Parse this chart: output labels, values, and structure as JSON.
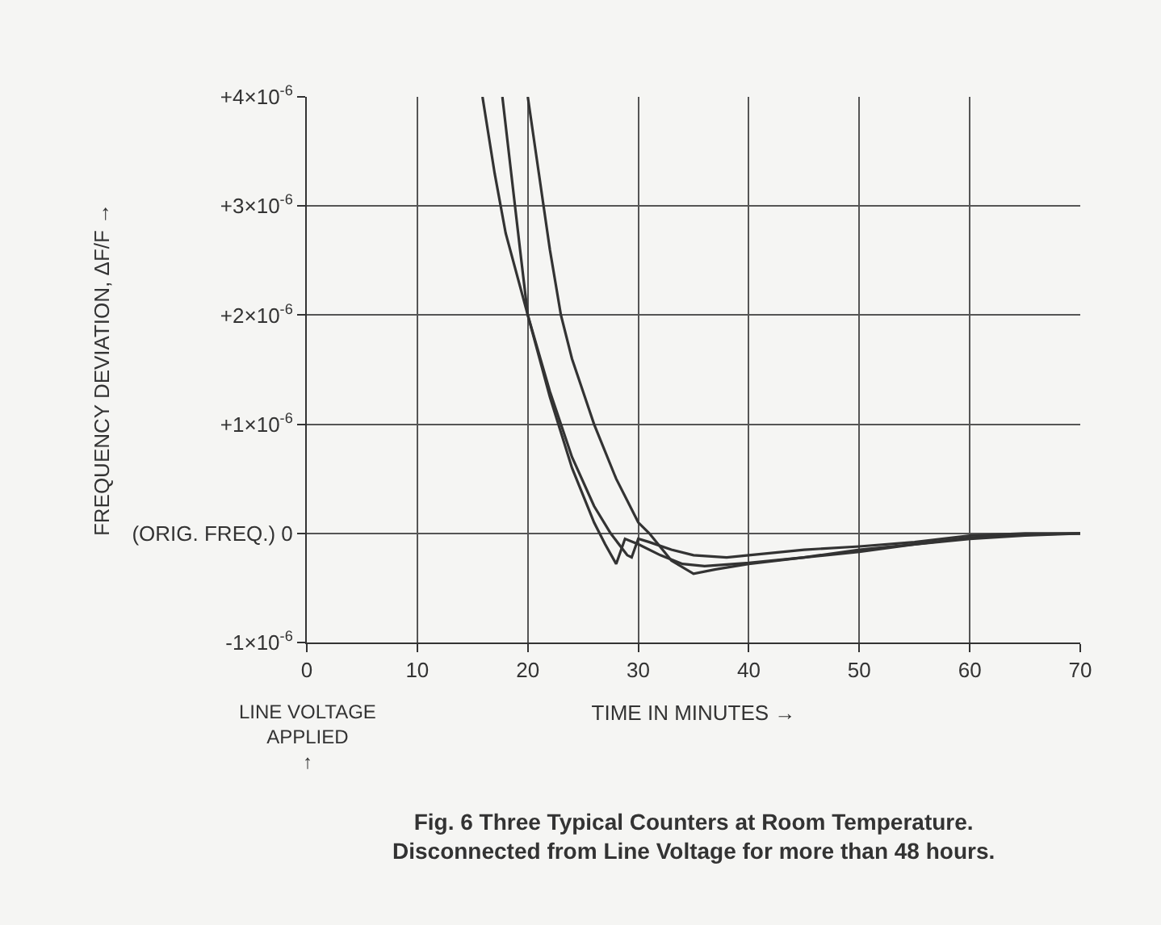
{
  "chart_data": {
    "type": "line",
    "xlabel": "TIME IN MINUTES →",
    "ylabel": "FREQUENCY DEVIATION, ΔF/F →",
    "xlim": [
      0,
      70
    ],
    "xticks": [
      0,
      10,
      20,
      30,
      40,
      50,
      60,
      70
    ],
    "ylim": [
      -1e-06,
      4e-06
    ],
    "yticks": [
      {
        "value": -1e-06,
        "label": "-1×10$^{-6}$"
      },
      {
        "value": 0,
        "label": "(ORIG. FREQ.) 0"
      },
      {
        "value": 1e-06,
        "label": "+1×10$^{-6}$"
      },
      {
        "value": 2e-06,
        "label": "+2×10$^{-6}$"
      },
      {
        "value": 3e-06,
        "label": "+3×10$^{-6}$"
      },
      {
        "value": 4e-06,
        "label": "+4×10$^{-6}$"
      }
    ],
    "grid": true,
    "marker": "none",
    "line_style": "solid",
    "series": [
      {
        "color": "#333333",
        "x": [
          15.9,
          17,
          18,
          20,
          22,
          24,
          26,
          27,
          28,
          28.8,
          30,
          32,
          34,
          36,
          40,
          45,
          50,
          55,
          60,
          65,
          70
        ],
        "values": [
          4e-06,
          3.3e-06,
          2.75e-06,
          2e-06,
          1.25e-06,
          6e-07,
          1e-07,
          -1e-07,
          -2.8e-07,
          -5e-08,
          -1e-07,
          -2e-07,
          -2.8e-07,
          -3e-07,
          -2.7e-07,
          -2.2e-07,
          -1.5e-07,
          -1e-07,
          -4e-08,
          -1e-08,
          0
        ]
      },
      {
        "color": "#333333",
        "x": [
          17.7,
          18.5,
          19.3,
          20,
          22,
          24,
          26,
          27.5,
          29,
          29.4,
          30,
          31,
          33,
          35,
          38,
          40,
          45,
          50,
          55,
          60,
          65,
          70
        ],
        "values": [
          4e-06,
          3.3e-06,
          2.6e-06,
          2e-06,
          1.3e-06,
          7e-07,
          2.5e-07,
          0,
          -2e-07,
          -2.2e-07,
          -5e-08,
          -8e-08,
          -1.5e-07,
          -2e-07,
          -2.2e-07,
          -2e-07,
          -1.5e-07,
          -1.2e-07,
          -8e-08,
          -2e-08,
          0,
          0
        ]
      },
      {
        "color": "#333333",
        "x": [
          20,
          21,
          22,
          23,
          24,
          26,
          28,
          30,
          31,
          33,
          35,
          37,
          40,
          45,
          50,
          55,
          60,
          65,
          70
        ],
        "values": [
          4e-06,
          3.3e-06,
          2.6e-06,
          2e-06,
          1.6e-06,
          1e-06,
          5e-07,
          1e-07,
          0,
          -2.5e-07,
          -3.7e-07,
          -3.3e-07,
          -2.8e-07,
          -2.2e-07,
          -1.7e-07,
          -1e-07,
          -5e-08,
          -2e-08,
          0
        ]
      }
    ],
    "annotations": [
      "LINE VOLTAGE APPLIED ↑",
      "Fig. 6 Three Typical Counters at Room Temperature. Disconnected from Line Voltage for more than 48 hours."
    ]
  }
}
